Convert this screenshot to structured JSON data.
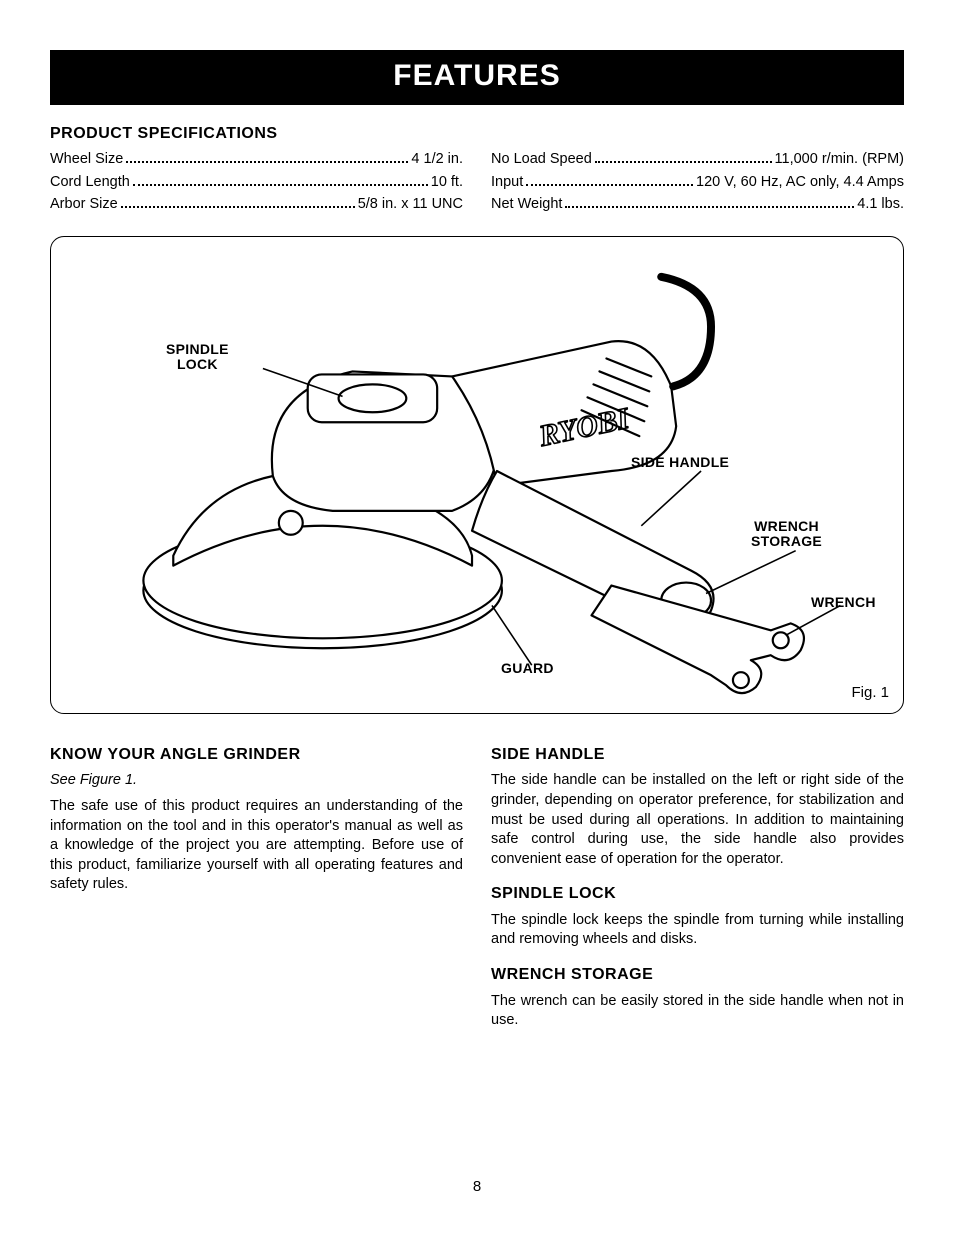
{
  "banner": "FEATURES",
  "spec_heading": "PRODUCT SPECIFICATIONS",
  "specs_left": [
    {
      "label": "Wheel Size",
      "value": "4 1/2 in."
    },
    {
      "label": "Cord Length",
      "value": "10 ft."
    },
    {
      "label": "Arbor Size",
      "value": "5/8 in. x 11 UNC"
    }
  ],
  "specs_right": [
    {
      "label": "No Load Speed",
      "value": "11,000 r/min. (RPM)"
    },
    {
      "label": "Input",
      "value": "120 V, 60 Hz, AC only, 4.4 Amps"
    },
    {
      "label": "Net Weight",
      "value": "4.1 lbs."
    }
  ],
  "figure": {
    "caption": "Fig. 1",
    "callouts": {
      "spindle_lock": "SPINDLE\nLOCK",
      "side_handle": "SIDE HANDLE",
      "wrench_storage": "WRENCH\nSTORAGE",
      "wrench": "WRENCH",
      "guard": "GUARD"
    },
    "stroke_color": "#000000",
    "stroke_width": 2,
    "fill_color": "#ffffff"
  },
  "sections": {
    "left": [
      {
        "heading": "KNOW YOUR ANGLE GRINDER",
        "see": "See Figure 1.",
        "body": "The safe use of this product requires an understanding of the information on the tool and in this operator's manual as well as a knowledge of the project you are attempting. Before use of this product, familiarize yourself with all operating features and safety rules."
      }
    ],
    "right": [
      {
        "heading": "SIDE HANDLE",
        "body": "The side handle can be installed on the left or right side of the grinder, depending on operator preference, for stabilization and must be used during all operations. In addition to maintaining safe control during use, the side handle also provides convenient ease of operation for the operator."
      },
      {
        "heading": "SPINDLE LOCK",
        "body": "The spindle lock keeps the spindle from turning while installing and removing wheels and disks."
      },
      {
        "heading": "WRENCH STORAGE",
        "body": "The wrench can be easily stored in the side handle when not in use."
      }
    ]
  },
  "page_number": "8"
}
